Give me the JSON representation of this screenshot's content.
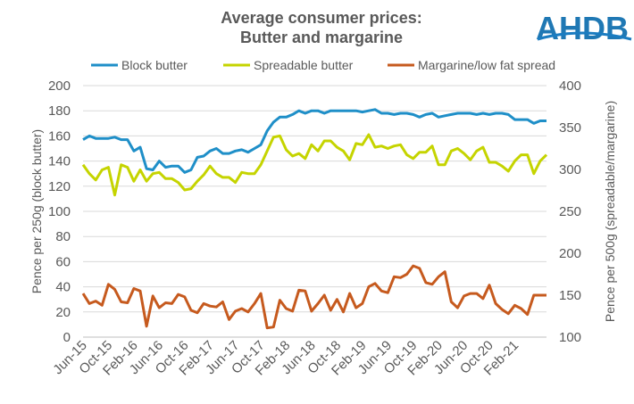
{
  "logo": {
    "text": "AHDB",
    "color": "#1a7cc1"
  },
  "chart_data": {
    "type": "line",
    "title": "Average consumer prices:",
    "subtitle": "Butter and margarine",
    "ylabel_left": "Pence per 250g (block butter)",
    "ylabel_right": "Pence per 500g (spreadable/margarine)",
    "ylim_left": [
      0,
      200
    ],
    "ylim_right": [
      100,
      400
    ],
    "yticks_left": [
      "0",
      "20",
      "40",
      "60",
      "80",
      "100",
      "120",
      "140",
      "160",
      "180",
      "200"
    ],
    "yticks_right": [
      "100",
      "150",
      "200",
      "250",
      "300",
      "350",
      "400"
    ],
    "x_tick_labels": [
      "Jun-15",
      "Oct-15",
      "Feb-16",
      "Jun-16",
      "Oct-16",
      "Feb-17",
      "Jun-17",
      "Oct-17",
      "Feb-18",
      "Jun-18",
      "Oct-18",
      "Feb-19",
      "Jun-19",
      "Oct-19",
      "Feb-20",
      "Jun-20",
      "Oct-20",
      "Feb-21"
    ],
    "x_tick_every": 4,
    "grid": true,
    "legend_position": "top",
    "series": [
      {
        "name": "Block butter",
        "axis": "left",
        "color": "#1f8fc8",
        "values": [
          157,
          160,
          158,
          158,
          158,
          159,
          157,
          157,
          148,
          151,
          134,
          133,
          140,
          135,
          136,
          136,
          131,
          133,
          143,
          144,
          148,
          150,
          146,
          146,
          148,
          149,
          147,
          150,
          153,
          164,
          171,
          175,
          175,
          177,
          180,
          178,
          180,
          180,
          178,
          180,
          180,
          180,
          180,
          180,
          179,
          180,
          181,
          178,
          178,
          177,
          178,
          178,
          177,
          175,
          177,
          178,
          175,
          176,
          177,
          178,
          178,
          178,
          177,
          178,
          177,
          178,
          178,
          177,
          173,
          173,
          173,
          170,
          172,
          172
        ]
      },
      {
        "name": "Spreadable butter",
        "axis": "left",
        "color": "#c5d400",
        "values": [
          137,
          130,
          125,
          133,
          135,
          113,
          137,
          135,
          124,
          133,
          124,
          130,
          131,
          126,
          126,
          123,
          117,
          118,
          124,
          129,
          136,
          130,
          127,
          127,
          123,
          131,
          130,
          130,
          137,
          148,
          159,
          160,
          149,
          144,
          146,
          142,
          153,
          148,
          156,
          156,
          151,
          148,
          141,
          154,
          153,
          161,
          151,
          152,
          150,
          152,
          153,
          145,
          142,
          147,
          147,
          152,
          137,
          137,
          148,
          150,
          146,
          141,
          148,
          151,
          139,
          139,
          136,
          132,
          140,
          145,
          145,
          130,
          140,
          145
        ]
      },
      {
        "name": "Margarine/low fat spread",
        "axis": "right",
        "color": "#c65a1e",
        "values": [
          152,
          140,
          143,
          138,
          163,
          157,
          142,
          141,
          158,
          155,
          113,
          149,
          135,
          141,
          140,
          151,
          148,
          132,
          129,
          140,
          137,
          136,
          142,
          121,
          131,
          134,
          130,
          140,
          152,
          111,
          112,
          144,
          134,
          131,
          156,
          155,
          131,
          140,
          150,
          132,
          145,
          130,
          152,
          135,
          140,
          160,
          164,
          155,
          153,
          172,
          171,
          175,
          185,
          182,
          165,
          163,
          172,
          178,
          142,
          135,
          149,
          152,
          152,
          146,
          162,
          140,
          133,
          128,
          138,
          134,
          127,
          150,
          150,
          150
        ]
      }
    ]
  }
}
